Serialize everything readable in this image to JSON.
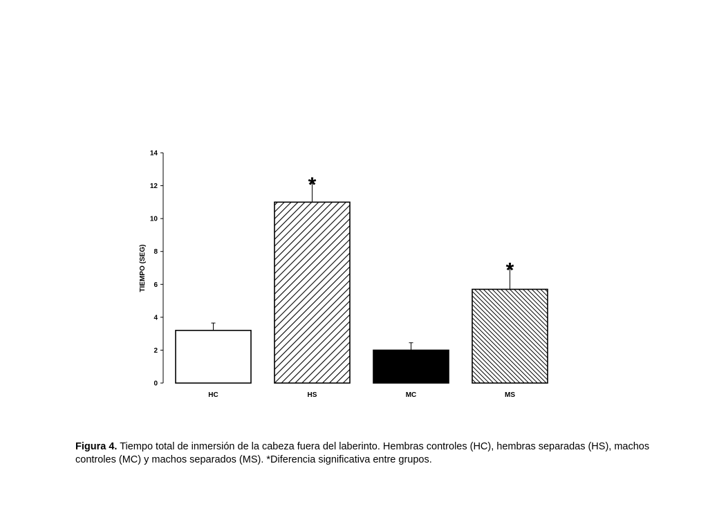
{
  "chart_data": {
    "type": "bar",
    "categories": [
      "HC",
      "HS",
      "MC",
      "MS"
    ],
    "values": [
      3.2,
      11.0,
      2.0,
      5.7
    ],
    "errors": [
      0.45,
      1.15,
      0.45,
      1.25
    ],
    "significant": [
      false,
      true,
      false,
      true
    ],
    "significance_marker": "*",
    "fills": [
      "white",
      "hatch-wide",
      "black",
      "hatch-dense"
    ],
    "ylabel": "TIEMPO (SEG)",
    "ylim": [
      0,
      14
    ],
    "yticks": [
      0,
      2,
      4,
      6,
      8,
      10,
      12,
      14
    ],
    "grid": false
  },
  "caption": {
    "label": "Figura 4.",
    "text": " Tiempo total de inmersión de la cabeza fuera del laberinto. Hembras controles (HC), hembras separadas (HS), machos controles (MC) y machos separados (MS). *Diferencia significativa entre grupos."
  }
}
